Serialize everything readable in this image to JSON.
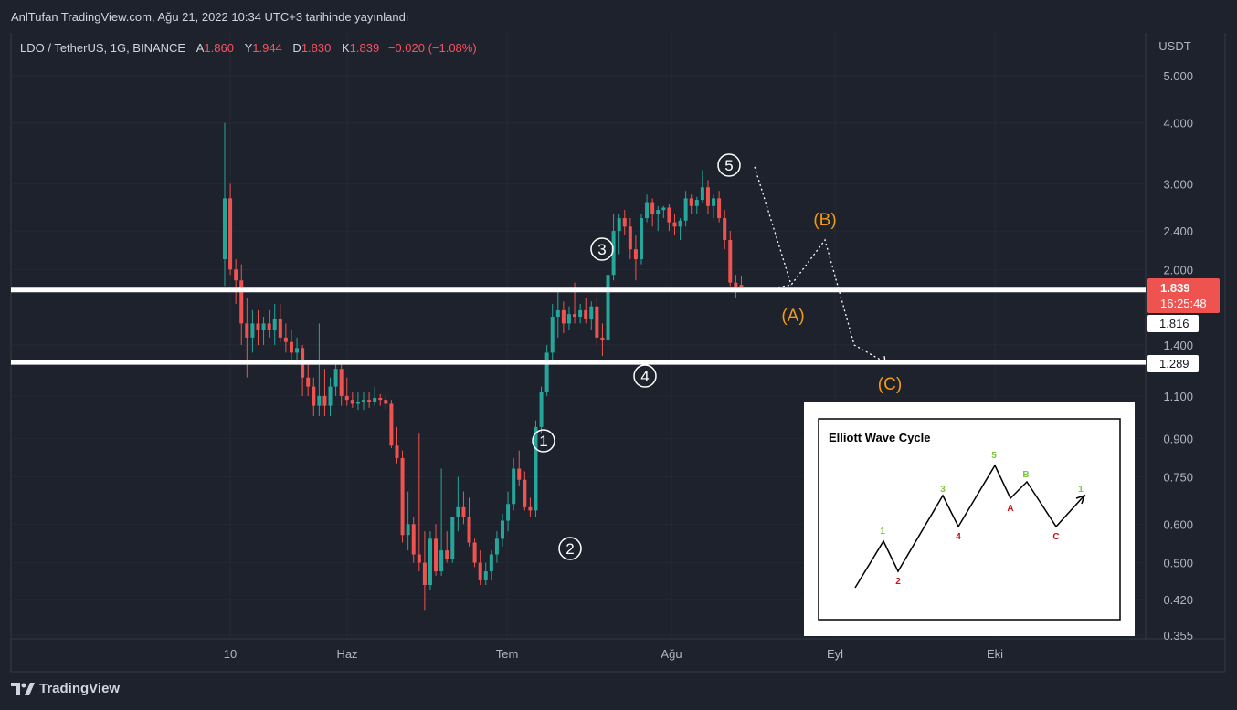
{
  "header": {
    "published": "AnlTufan TradingView.com, Ağu 21, 2022 10:34 UTC+3 tarihinde yayınlandı"
  },
  "symbol_bar": {
    "symbol": "LDO / TetherUS, 1G, BINANCE",
    "open_label": "A",
    "open": "1.860",
    "high_label": "Y",
    "high": "1.944",
    "low_label": "D",
    "low": "1.830",
    "close_label": "K",
    "close": "1.839",
    "change": "−0.020 (−1.08%)"
  },
  "price_axis": {
    "currency": "USDT",
    "ticks": [
      "5.000",
      "4.000",
      "3.000",
      "2.400",
      "2.000",
      "1.400",
      "1.100",
      "0.900",
      "0.750",
      "0.600",
      "0.500",
      "0.420",
      "0.355"
    ],
    "last_price": "1.839",
    "countdown": "16:25:48",
    "level_1": "1.816",
    "level_2": "1.289"
  },
  "time_axis": {
    "labels": [
      "10",
      "Haz",
      "Tem",
      "Ağu",
      "Eyl",
      "Eki"
    ]
  },
  "colors": {
    "up": "#26a69a",
    "down": "#ef5350",
    "background": "#1e222d",
    "annotation_orange": "#f39c12"
  },
  "annotations": {
    "impulse": [
      "1",
      "2",
      "3",
      "4",
      "5"
    ],
    "correction": [
      "(A)",
      "(B)",
      "(C)"
    ]
  },
  "inset": {
    "title": "Elliott Wave Cycle",
    "labels": [
      "1",
      "2",
      "3",
      "4",
      "5",
      "A",
      "B",
      "C",
      "1"
    ]
  },
  "footer": {
    "brand": "TradingView"
  },
  "chart_data": {
    "type": "candlestick",
    "title": "LDO / TetherUS, 1G, BINANCE",
    "y_scale": "log",
    "ylim": [
      0.355,
      5.6
    ],
    "y_unit": "USDT",
    "x_labels": [
      "10",
      "Haz",
      "Tem",
      "Ağu",
      "Eyl",
      "Eki"
    ],
    "candles": [
      {
        "o": 2.1,
        "h": 4.0,
        "l": 1.85,
        "c": 2.8
      },
      {
        "o": 2.8,
        "h": 3.0,
        "l": 1.95,
        "c": 2.0
      },
      {
        "o": 2.0,
        "h": 2.1,
        "l": 1.7,
        "c": 1.9
      },
      {
        "o": 1.9,
        "h": 2.05,
        "l": 1.4,
        "c": 1.55
      },
      {
        "o": 1.55,
        "h": 1.75,
        "l": 1.2,
        "c": 1.45
      },
      {
        "o": 1.45,
        "h": 1.65,
        "l": 1.35,
        "c": 1.55
      },
      {
        "o": 1.55,
        "h": 1.65,
        "l": 1.4,
        "c": 1.5
      },
      {
        "o": 1.5,
        "h": 1.6,
        "l": 1.4,
        "c": 1.55
      },
      {
        "o": 1.55,
        "h": 1.65,
        "l": 1.45,
        "c": 1.5
      },
      {
        "o": 1.5,
        "h": 1.7,
        "l": 1.4,
        "c": 1.58
      },
      {
        "o": 1.58,
        "h": 1.7,
        "l": 1.42,
        "c": 1.45
      },
      {
        "o": 1.45,
        "h": 1.55,
        "l": 1.35,
        "c": 1.42
      },
      {
        "o": 1.42,
        "h": 1.5,
        "l": 1.28,
        "c": 1.35
      },
      {
        "o": 1.35,
        "h": 1.45,
        "l": 1.3,
        "c": 1.38
      },
      {
        "o": 1.38,
        "h": 1.4,
        "l": 1.1,
        "c": 1.2
      },
      {
        "o": 1.2,
        "h": 1.3,
        "l": 1.1,
        "c": 1.15
      },
      {
        "o": 1.15,
        "h": 1.2,
        "l": 1.0,
        "c": 1.05
      },
      {
        "o": 1.05,
        "h": 1.55,
        "l": 1.0,
        "c": 1.1
      },
      {
        "o": 1.1,
        "h": 1.25,
        "l": 1.0,
        "c": 1.05
      },
      {
        "o": 1.05,
        "h": 1.2,
        "l": 1.0,
        "c": 1.15
      },
      {
        "o": 1.15,
        "h": 1.3,
        "l": 1.1,
        "c": 1.25
      },
      {
        "o": 1.25,
        "h": 1.3,
        "l": 1.05,
        "c": 1.1
      },
      {
        "o": 1.1,
        "h": 1.2,
        "l": 1.05,
        "c": 1.08
      },
      {
        "o": 1.08,
        "h": 1.12,
        "l": 1.04,
        "c": 1.06
      },
      {
        "o": 1.06,
        "h": 1.12,
        "l": 1.03,
        "c": 1.07
      },
      {
        "o": 1.07,
        "h": 1.12,
        "l": 1.03,
        "c": 1.08
      },
      {
        "o": 1.08,
        "h": 1.12,
        "l": 1.04,
        "c": 1.07
      },
      {
        "o": 1.07,
        "h": 1.15,
        "l": 1.05,
        "c": 1.09
      },
      {
        "o": 1.09,
        "h": 1.11,
        "l": 1.05,
        "c": 1.08
      },
      {
        "o": 1.08,
        "h": 1.1,
        "l": 1.03,
        "c": 1.06
      },
      {
        "o": 1.06,
        "h": 1.08,
        "l": 0.86,
        "c": 0.87
      },
      {
        "o": 0.87,
        "h": 0.95,
        "l": 0.8,
        "c": 0.82
      },
      {
        "o": 0.82,
        "h": 0.85,
        "l": 0.55,
        "c": 0.57
      },
      {
        "o": 0.57,
        "h": 0.7,
        "l": 0.53,
        "c": 0.6
      },
      {
        "o": 0.6,
        "h": 0.62,
        "l": 0.5,
        "c": 0.52
      },
      {
        "o": 0.52,
        "h": 0.92,
        "l": 0.48,
        "c": 0.5
      },
      {
        "o": 0.5,
        "h": 0.58,
        "l": 0.4,
        "c": 0.45
      },
      {
        "o": 0.45,
        "h": 0.58,
        "l": 0.44,
        "c": 0.56
      },
      {
        "o": 0.56,
        "h": 0.6,
        "l": 0.47,
        "c": 0.48
      },
      {
        "o": 0.48,
        "h": 0.78,
        "l": 0.47,
        "c": 0.53
      },
      {
        "o": 0.53,
        "h": 0.58,
        "l": 0.5,
        "c": 0.51
      },
      {
        "o": 0.51,
        "h": 0.62,
        "l": 0.5,
        "c": 0.62
      },
      {
        "o": 0.62,
        "h": 0.75,
        "l": 0.58,
        "c": 0.65
      },
      {
        "o": 0.65,
        "h": 0.7,
        "l": 0.6,
        "c": 0.62
      },
      {
        "o": 0.62,
        "h": 0.68,
        "l": 0.54,
        "c": 0.55
      },
      {
        "o": 0.55,
        "h": 0.56,
        "l": 0.49,
        "c": 0.5
      },
      {
        "o": 0.5,
        "h": 0.53,
        "l": 0.45,
        "c": 0.46
      },
      {
        "o": 0.46,
        "h": 0.5,
        "l": 0.45,
        "c": 0.48
      },
      {
        "o": 0.48,
        "h": 0.53,
        "l": 0.46,
        "c": 0.52
      },
      {
        "o": 0.52,
        "h": 0.58,
        "l": 0.5,
        "c": 0.56
      },
      {
        "o": 0.56,
        "h": 0.63,
        "l": 0.54,
        "c": 0.61
      },
      {
        "o": 0.61,
        "h": 0.7,
        "l": 0.58,
        "c": 0.66
      },
      {
        "o": 0.66,
        "h": 0.82,
        "l": 0.64,
        "c": 0.78
      },
      {
        "o": 0.78,
        "h": 0.85,
        "l": 0.72,
        "c": 0.74
      },
      {
        "o": 0.74,
        "h": 0.77,
        "l": 0.64,
        "c": 0.65
      },
      {
        "o": 0.65,
        "h": 0.68,
        "l": 0.62,
        "c": 0.64
      },
      {
        "o": 0.64,
        "h": 0.98,
        "l": 0.62,
        "c": 0.95
      },
      {
        "o": 0.95,
        "h": 1.15,
        "l": 0.92,
        "c": 1.12
      },
      {
        "o": 1.12,
        "h": 1.4,
        "l": 1.1,
        "c": 1.35
      },
      {
        "o": 1.35,
        "h": 1.7,
        "l": 1.3,
        "c": 1.6
      },
      {
        "o": 1.6,
        "h": 1.8,
        "l": 1.45,
        "c": 1.65
      },
      {
        "o": 1.65,
        "h": 1.72,
        "l": 1.48,
        "c": 1.55
      },
      {
        "o": 1.55,
        "h": 1.68,
        "l": 1.5,
        "c": 1.62
      },
      {
        "o": 1.62,
        "h": 1.88,
        "l": 1.55,
        "c": 1.6
      },
      {
        "o": 1.6,
        "h": 1.7,
        "l": 1.55,
        "c": 1.65
      },
      {
        "o": 1.65,
        "h": 1.75,
        "l": 1.55,
        "c": 1.58
      },
      {
        "o": 1.58,
        "h": 1.72,
        "l": 1.5,
        "c": 1.68
      },
      {
        "o": 1.68,
        "h": 1.75,
        "l": 1.4,
        "c": 1.45
      },
      {
        "o": 1.45,
        "h": 1.55,
        "l": 1.33,
        "c": 1.43
      },
      {
        "o": 1.43,
        "h": 2.0,
        "l": 1.4,
        "c": 1.95
      },
      {
        "o": 1.95,
        "h": 2.6,
        "l": 1.9,
        "c": 2.4
      },
      {
        "o": 2.4,
        "h": 2.6,
        "l": 2.15,
        "c": 2.55
      },
      {
        "o": 2.55,
        "h": 2.65,
        "l": 2.35,
        "c": 2.45
      },
      {
        "o": 2.45,
        "h": 2.55,
        "l": 2.1,
        "c": 2.2
      },
      {
        "o": 2.2,
        "h": 2.35,
        "l": 1.9,
        "c": 2.1
      },
      {
        "o": 2.1,
        "h": 2.6,
        "l": 2.05,
        "c": 2.55
      },
      {
        "o": 2.55,
        "h": 2.85,
        "l": 2.5,
        "c": 2.75
      },
      {
        "o": 2.75,
        "h": 2.8,
        "l": 2.45,
        "c": 2.6
      },
      {
        "o": 2.6,
        "h": 2.7,
        "l": 2.4,
        "c": 2.65
      },
      {
        "o": 2.65,
        "h": 2.7,
        "l": 2.55,
        "c": 2.68
      },
      {
        "o": 2.68,
        "h": 2.72,
        "l": 2.4,
        "c": 2.5
      },
      {
        "o": 2.5,
        "h": 2.6,
        "l": 2.35,
        "c": 2.45
      },
      {
        "o": 2.45,
        "h": 2.55,
        "l": 2.3,
        "c": 2.52
      },
      {
        "o": 2.52,
        "h": 2.9,
        "l": 2.45,
        "c": 2.8
      },
      {
        "o": 2.8,
        "h": 2.85,
        "l": 2.6,
        "c": 2.7
      },
      {
        "o": 2.7,
        "h": 2.82,
        "l": 2.6,
        "c": 2.78
      },
      {
        "o": 2.78,
        "h": 3.2,
        "l": 2.75,
        "c": 2.95
      },
      {
        "o": 2.95,
        "h": 3.05,
        "l": 2.6,
        "c": 2.7
      },
      {
        "o": 2.7,
        "h": 2.85,
        "l": 2.55,
        "c": 2.8
      },
      {
        "o": 2.8,
        "h": 2.9,
        "l": 2.5,
        "c": 2.55
      },
      {
        "o": 2.55,
        "h": 2.65,
        "l": 2.2,
        "c": 2.3
      },
      {
        "o": 2.3,
        "h": 2.4,
        "l": 1.85,
        "c": 1.88
      },
      {
        "o": 1.88,
        "h": 1.95,
        "l": 1.75,
        "c": 1.84
      },
      {
        "o": 1.86,
        "h": 1.944,
        "l": 1.83,
        "c": 1.839
      }
    ],
    "levels": [
      1.816,
      1.289
    ],
    "projection_path": [
      1.839,
      1.86,
      2.3,
      1.4,
      1.289
    ]
  }
}
